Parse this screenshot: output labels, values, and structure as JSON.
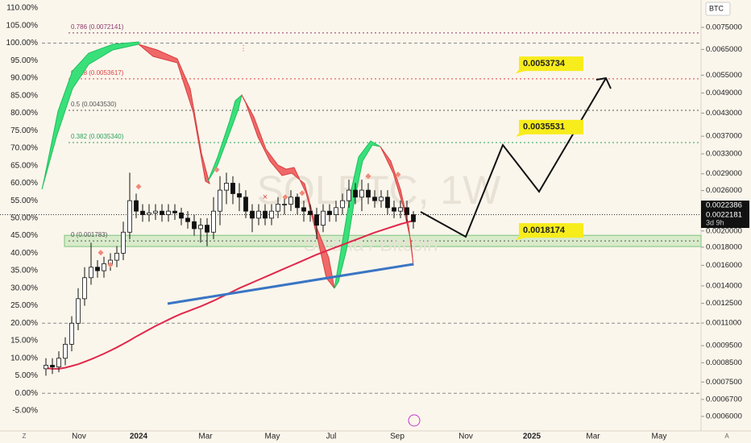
{
  "chart_data": {
    "type": "candlestick",
    "watermark": "SOLBTC, 1W",
    "watermark_sub": "Solana / Bitcoin",
    "y2_title": "BTC",
    "ylim": [
      -10.75,
      112.3
    ],
    "yticks": [
      {
        "value": 110,
        "label": "110.00%"
      },
      {
        "value": 105,
        "label": "105.00%"
      },
      {
        "value": 100,
        "label": "100.00%"
      },
      {
        "value": 95,
        "label": "95.00%"
      },
      {
        "value": 90,
        "label": "90.00%"
      },
      {
        "value": 85,
        "label": "85.00%"
      },
      {
        "value": 80,
        "label": "80.00%"
      },
      {
        "value": 75,
        "label": "75.00%"
      },
      {
        "value": 70,
        "label": "70.00%"
      },
      {
        "value": 65,
        "label": "65.00%"
      },
      {
        "value": 60,
        "label": "60.00%"
      },
      {
        "value": 55,
        "label": "55.00%"
      },
      {
        "value": 50,
        "label": "50.00%"
      },
      {
        "value": 45,
        "label": "45.00%"
      },
      {
        "value": 40,
        "label": "40.00%"
      },
      {
        "value": 35,
        "label": "35.00%"
      },
      {
        "value": 30,
        "label": "30.00%"
      },
      {
        "value": 25,
        "label": "25.00%"
      },
      {
        "value": 20,
        "label": "20.00%"
      },
      {
        "value": 15,
        "label": "15.00%"
      },
      {
        "value": 10,
        "label": "10.00%"
      },
      {
        "value": 5,
        "label": "5.00%"
      },
      {
        "value": 0,
        "label": "0.00%"
      },
      {
        "value": -5,
        "label": "-5.00%"
      }
    ],
    "y2_log": true,
    "y2lim": [
      0.000546,
      0.00896
    ],
    "y2ticks": [
      0.0075,
      0.0065,
      0.0055,
      0.0049,
      0.0043,
      0.0037,
      0.0033,
      0.0029,
      0.0026,
      0.002,
      0.0018,
      0.0016,
      0.0014,
      0.00125,
      0.0011,
      0.00095,
      0.00085,
      0.00075,
      0.00067,
      0.0006
    ],
    "y2tick_labels": [
      "0.0075000",
      "0.0065000",
      "0.0055000",
      "0.0049000",
      "0.0043000",
      "0.0037000",
      "0.0033000",
      "0.0029000",
      "0.0026000",
      "0.0020000",
      "0.0018000",
      "0.0016000",
      "0.0014000",
      "0.0012500",
      "0.0011000",
      "0.0009500",
      "0.0008500",
      "0.0007500",
      "0.0006700",
      "0.0006000"
    ],
    "price_labels": [
      "0.0022386",
      "0.0022181",
      "3d 9h"
    ],
    "x_labels": [
      "Nov",
      "2024",
      "Mar",
      "May",
      "Jul",
      "Sep",
      "Nov",
      "2025",
      "Mar",
      "May"
    ],
    "open": [
      7,
      8,
      7.5,
      10,
      14,
      20,
      27,
      33,
      36,
      35,
      37,
      38,
      40,
      46,
      55,
      52,
      51,
      51.5,
      52,
      51,
      52,
      51.5,
      50,
      49,
      47,
      48,
      46,
      52,
      58,
      60,
      57,
      56,
      52,
      50,
      52,
      50,
      52,
      54,
      54,
      56,
      53,
      52,
      51,
      48,
      52,
      51,
      53,
      55,
      58,
      56,
      58,
      56,
      55,
      56,
      53,
      52,
      53,
      51
    ],
    "high": [
      10,
      10,
      12,
      16,
      22,
      30,
      36,
      43,
      38,
      39,
      40,
      42,
      49,
      63,
      57,
      54,
      54,
      54,
      54,
      54,
      54,
      53,
      52,
      51,
      50,
      50,
      56,
      62,
      63,
      62,
      60,
      58,
      54,
      54,
      54,
      54,
      56,
      56,
      58,
      57,
      55,
      54,
      53,
      54,
      54,
      55,
      57,
      61,
      60,
      61,
      60,
      58,
      58,
      58,
      55,
      55,
      55,
      52
    ],
    "low": [
      5,
      5.5,
      6,
      8,
      12,
      18,
      25,
      31,
      33,
      33,
      35,
      36,
      38,
      44,
      50,
      49,
      49,
      49.5,
      49,
      49,
      49.5,
      48,
      47,
      45,
      43,
      42,
      44,
      48,
      54,
      54,
      52,
      50,
      46,
      48,
      48,
      48,
      50,
      51,
      52,
      51,
      49,
      49,
      44,
      46,
      49,
      49,
      51,
      53,
      54,
      52,
      54,
      53,
      53,
      51,
      50,
      50,
      49,
      47
    ],
    "close": [
      8,
      7.5,
      10,
      14,
      20,
      27,
      33,
      36,
      35,
      37,
      38,
      40,
      46,
      55,
      52,
      51,
      51.5,
      52,
      51,
      52,
      51.5,
      50,
      49,
      47,
      48,
      46,
      52,
      58,
      60,
      57,
      56,
      52,
      50,
      52,
      50,
      52,
      54,
      54,
      56,
      53,
      52,
      51,
      48,
      52,
      51,
      53,
      55,
      58,
      56,
      58,
      56,
      55,
      56,
      53,
      52,
      53,
      51,
      49
    ],
    "ma": {
      "color": "#e0284a",
      "values": [
        7.2,
        7,
        7,
        7.3,
        7.8,
        8.3,
        9,
        9.7,
        10.5,
        11.3,
        12.2,
        13.1,
        14.1,
        15.1,
        16.2,
        17.2,
        18.2,
        19.2,
        20.1,
        21,
        21.9,
        22.7,
        23.4,
        24.1,
        24.8,
        25.6,
        26.4,
        27.3,
        28.2,
        29.1,
        30,
        30.8,
        31.6,
        32.4,
        33.2,
        34,
        34.8,
        35.6,
        36.4,
        37.2,
        38,
        38.8,
        39.6,
        40.3,
        41,
        41.7,
        42.4,
        43.1,
        43.8,
        44.5,
        45.2,
        45.9,
        46.5,
        47.1,
        47.7,
        48.3,
        48.8,
        49.3
      ]
    },
    "levels": [
      {
        "value": 102.9,
        "label": "0.786 (0.0072141)",
        "color": "#8e3a6e"
      },
      {
        "value": 89.8,
        "label": "0.618 (0.0053617)",
        "color": "#e04040"
      },
      {
        "value": 80.8,
        "label": "0.5 (0.0043530)",
        "color": "#555555"
      },
      {
        "value": 71.6,
        "label": "0.382 (0.0035340)",
        "color": "#2aa35a"
      },
      {
        "value": 43.5,
        "label": "0 (0.001783)",
        "color": "#555555"
      }
    ],
    "guides": [
      100,
      20,
      0
    ],
    "last_price": 51,
    "zone": [
      41.9,
      45.1
    ],
    "callouts": [
      {
        "value": 94.1,
        "label": "0.0053734"
      },
      {
        "value": 76,
        "label": "0.0035531"
      },
      {
        "value": 46.5,
        "label": "0.0018174"
      }
    ],
    "corner_labels": [
      "Z",
      "A"
    ]
  }
}
